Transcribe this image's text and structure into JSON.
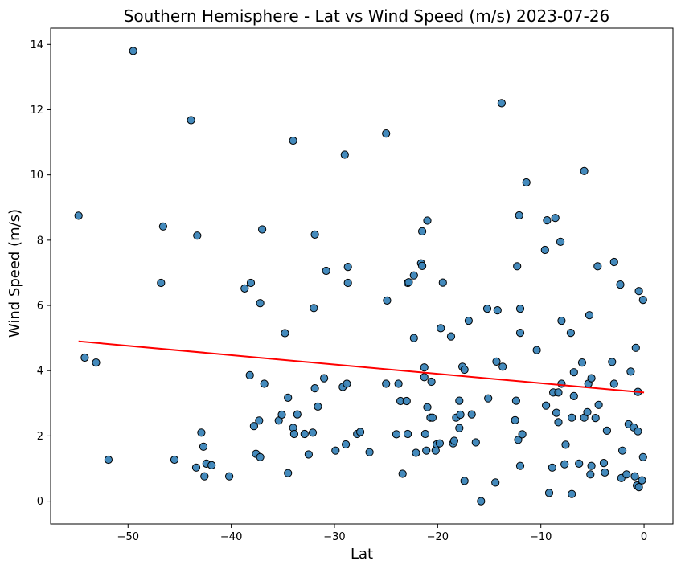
{
  "chart_data": {
    "type": "scatter",
    "title": "Southern Hemisphere - Lat vs Wind Speed (m/s) 2023-07-26",
    "xlabel": "Lat",
    "ylabel": "Wind Speed (m/s)",
    "xlim": [
      -57.5,
      2.8
    ],
    "ylim": [
      -0.7,
      14.5
    ],
    "xticks": [
      -50,
      -40,
      -30,
      -20,
      -10,
      0
    ],
    "yticks": [
      0,
      2,
      4,
      6,
      8,
      10,
      12,
      14
    ],
    "xtick_labels": [
      "−50",
      "−40",
      "−30",
      "−20",
      "−10",
      "0"
    ],
    "ytick_labels": [
      "0",
      "2",
      "4",
      "6",
      "8",
      "10",
      "12",
      "14"
    ],
    "grid": false,
    "colors": {
      "marker_fill": "#3a84b8",
      "marker_edge": "#000000",
      "regression": "#ff0000"
    },
    "regression": {
      "x": [
        -54.8,
        0.0
      ],
      "y": [
        4.9,
        3.33
      ]
    },
    "points": [
      [
        -54.8,
        8.75
      ],
      [
        -54.2,
        4.4
      ],
      [
        -53.1,
        4.25
      ],
      [
        -51.9,
        1.27
      ],
      [
        -49.5,
        13.8
      ],
      [
        -46.6,
        8.42
      ],
      [
        -46.8,
        6.69
      ],
      [
        -45.5,
        1.27
      ],
      [
        -43.9,
        11.68
      ],
      [
        -43.3,
        8.14
      ],
      [
        -43.4,
        1.03
      ],
      [
        -42.9,
        2.1
      ],
      [
        -42.7,
        1.67
      ],
      [
        -42.6,
        0.76
      ],
      [
        -42.4,
        1.15
      ],
      [
        -41.9,
        1.1
      ],
      [
        -40.2,
        0.76
      ],
      [
        -38.7,
        6.52
      ],
      [
        -38.1,
        6.69
      ],
      [
        -38.2,
        3.86
      ],
      [
        -37.8,
        2.3
      ],
      [
        -37.6,
        1.45
      ],
      [
        -37.3,
        2.47
      ],
      [
        -37.2,
        1.35
      ],
      [
        -37.2,
        6.07
      ],
      [
        -37.0,
        8.33
      ],
      [
        -36.8,
        3.6
      ],
      [
        -35.4,
        2.47
      ],
      [
        -35.1,
        2.65
      ],
      [
        -34.8,
        5.15
      ],
      [
        -34.5,
        3.17
      ],
      [
        -34.5,
        0.86
      ],
      [
        -34.0,
        11.05
      ],
      [
        -34.0,
        2.25
      ],
      [
        -33.9,
        2.06
      ],
      [
        -33.6,
        2.66
      ],
      [
        -32.9,
        2.06
      ],
      [
        -32.5,
        1.43
      ],
      [
        -32.1,
        2.1
      ],
      [
        -32.0,
        5.92
      ],
      [
        -31.9,
        8.17
      ],
      [
        -31.9,
        3.46
      ],
      [
        -31.6,
        2.9
      ],
      [
        -31.0,
        3.77
      ],
      [
        -30.8,
        7.06
      ],
      [
        -29.9,
        1.55
      ],
      [
        -29.2,
        3.5
      ],
      [
        -29.0,
        10.62
      ],
      [
        -28.9,
        1.74
      ],
      [
        -28.8,
        3.6
      ],
      [
        -28.7,
        7.18
      ],
      [
        -28.7,
        6.69
      ],
      [
        -27.8,
        2.06
      ],
      [
        -27.5,
        2.12
      ],
      [
        -26.6,
        1.5
      ],
      [
        -25.0,
        11.27
      ],
      [
        -24.9,
        6.15
      ],
      [
        -25.0,
        3.6
      ],
      [
        -24.0,
        2.05
      ],
      [
        -23.8,
        3.6
      ],
      [
        -23.6,
        3.07
      ],
      [
        -23.4,
        0.84
      ],
      [
        -23.0,
        3.07
      ],
      [
        -22.9,
        6.69
      ],
      [
        -22.8,
        6.71
      ],
      [
        -22.9,
        2.06
      ],
      [
        -22.3,
        6.92
      ],
      [
        -22.3,
        5.0
      ],
      [
        -22.1,
        1.48
      ],
      [
        -21.6,
        7.29
      ],
      [
        -21.5,
        7.21
      ],
      [
        -21.5,
        8.27
      ],
      [
        -21.3,
        4.1
      ],
      [
        -21.3,
        3.8
      ],
      [
        -21.2,
        2.06
      ],
      [
        -21.1,
        1.55
      ],
      [
        -21.0,
        8.6
      ],
      [
        -21.0,
        2.88
      ],
      [
        -20.7,
        2.56
      ],
      [
        -20.6,
        3.66
      ],
      [
        -20.5,
        2.56
      ],
      [
        -20.2,
        1.55
      ],
      [
        -20.1,
        1.74
      ],
      [
        -19.8,
        1.77
      ],
      [
        -19.7,
        5.3
      ],
      [
        -19.5,
        6.7
      ],
      [
        -18.7,
        5.05
      ],
      [
        -18.5,
        1.77
      ],
      [
        -18.4,
        1.85
      ],
      [
        -18.2,
        2.56
      ],
      [
        -17.9,
        3.08
      ],
      [
        -17.9,
        2.24
      ],
      [
        -17.8,
        2.65
      ],
      [
        -17.6,
        4.12
      ],
      [
        -17.4,
        4.03
      ],
      [
        -17.4,
        0.62
      ],
      [
        -17.0,
        5.53
      ],
      [
        -16.7,
        2.66
      ],
      [
        -16.3,
        1.8
      ],
      [
        -15.8,
        0.0
      ],
      [
        -15.2,
        5.9
      ],
      [
        -15.1,
        3.15
      ],
      [
        -14.4,
        0.57
      ],
      [
        -14.3,
        4.28
      ],
      [
        -14.2,
        5.85
      ],
      [
        -13.8,
        12.2
      ],
      [
        -13.7,
        4.12
      ],
      [
        -12.5,
        2.48
      ],
      [
        -12.4,
        3.08
      ],
      [
        -12.3,
        7.2
      ],
      [
        -12.2,
        1.88
      ],
      [
        -12.1,
        8.76
      ],
      [
        -12.0,
        5.9
      ],
      [
        -12.0,
        5.16
      ],
      [
        -12.0,
        1.08
      ],
      [
        -11.8,
        2.05
      ],
      [
        -11.4,
        9.77
      ],
      [
        -10.4,
        4.63
      ],
      [
        -9.6,
        7.7
      ],
      [
        -9.5,
        2.93
      ],
      [
        -9.4,
        8.61
      ],
      [
        -9.2,
        0.25
      ],
      [
        -8.9,
        1.03
      ],
      [
        -8.8,
        3.33
      ],
      [
        -8.6,
        8.68
      ],
      [
        -8.5,
        2.71
      ],
      [
        -8.3,
        3.33
      ],
      [
        -8.3,
        2.42
      ],
      [
        -8.1,
        7.95
      ],
      [
        -8.0,
        5.53
      ],
      [
        -8.0,
        3.6
      ],
      [
        -7.7,
        1.13
      ],
      [
        -7.6,
        1.73
      ],
      [
        -7.1,
        5.16
      ],
      [
        -7.0,
        0.22
      ],
      [
        -7.0,
        2.56
      ],
      [
        -6.8,
        3.95
      ],
      [
        -6.8,
        3.22
      ],
      [
        -6.3,
        1.15
      ],
      [
        -6.0,
        4.25
      ],
      [
        -5.8,
        10.12
      ],
      [
        -5.8,
        2.56
      ],
      [
        -5.5,
        2.73
      ],
      [
        -5.4,
        3.6
      ],
      [
        -5.3,
        5.7
      ],
      [
        -5.2,
        0.82
      ],
      [
        -5.1,
        1.08
      ],
      [
        -5.1,
        3.77
      ],
      [
        -4.7,
        2.55
      ],
      [
        -4.5,
        7.2
      ],
      [
        -4.4,
        2.95
      ],
      [
        -3.9,
        1.17
      ],
      [
        -3.8,
        0.88
      ],
      [
        -3.6,
        2.16
      ],
      [
        -3.1,
        4.27
      ],
      [
        -2.9,
        3.6
      ],
      [
        -2.9,
        7.33
      ],
      [
        -2.3,
        6.64
      ],
      [
        -2.2,
        0.71
      ],
      [
        -2.1,
        1.55
      ],
      [
        -1.7,
        0.82
      ],
      [
        -1.5,
        2.36
      ],
      [
        -1.3,
        3.97
      ],
      [
        -1.0,
        2.26
      ],
      [
        -0.9,
        0.76
      ],
      [
        -0.8,
        4.7
      ],
      [
        -0.7,
        0.48
      ],
      [
        -0.6,
        3.35
      ],
      [
        -0.6,
        2.14
      ],
      [
        -0.5,
        6.44
      ],
      [
        -0.5,
        0.43
      ],
      [
        -0.2,
        0.64
      ],
      [
        -0.1,
        6.17
      ],
      [
        -0.1,
        1.35
      ]
    ]
  }
}
